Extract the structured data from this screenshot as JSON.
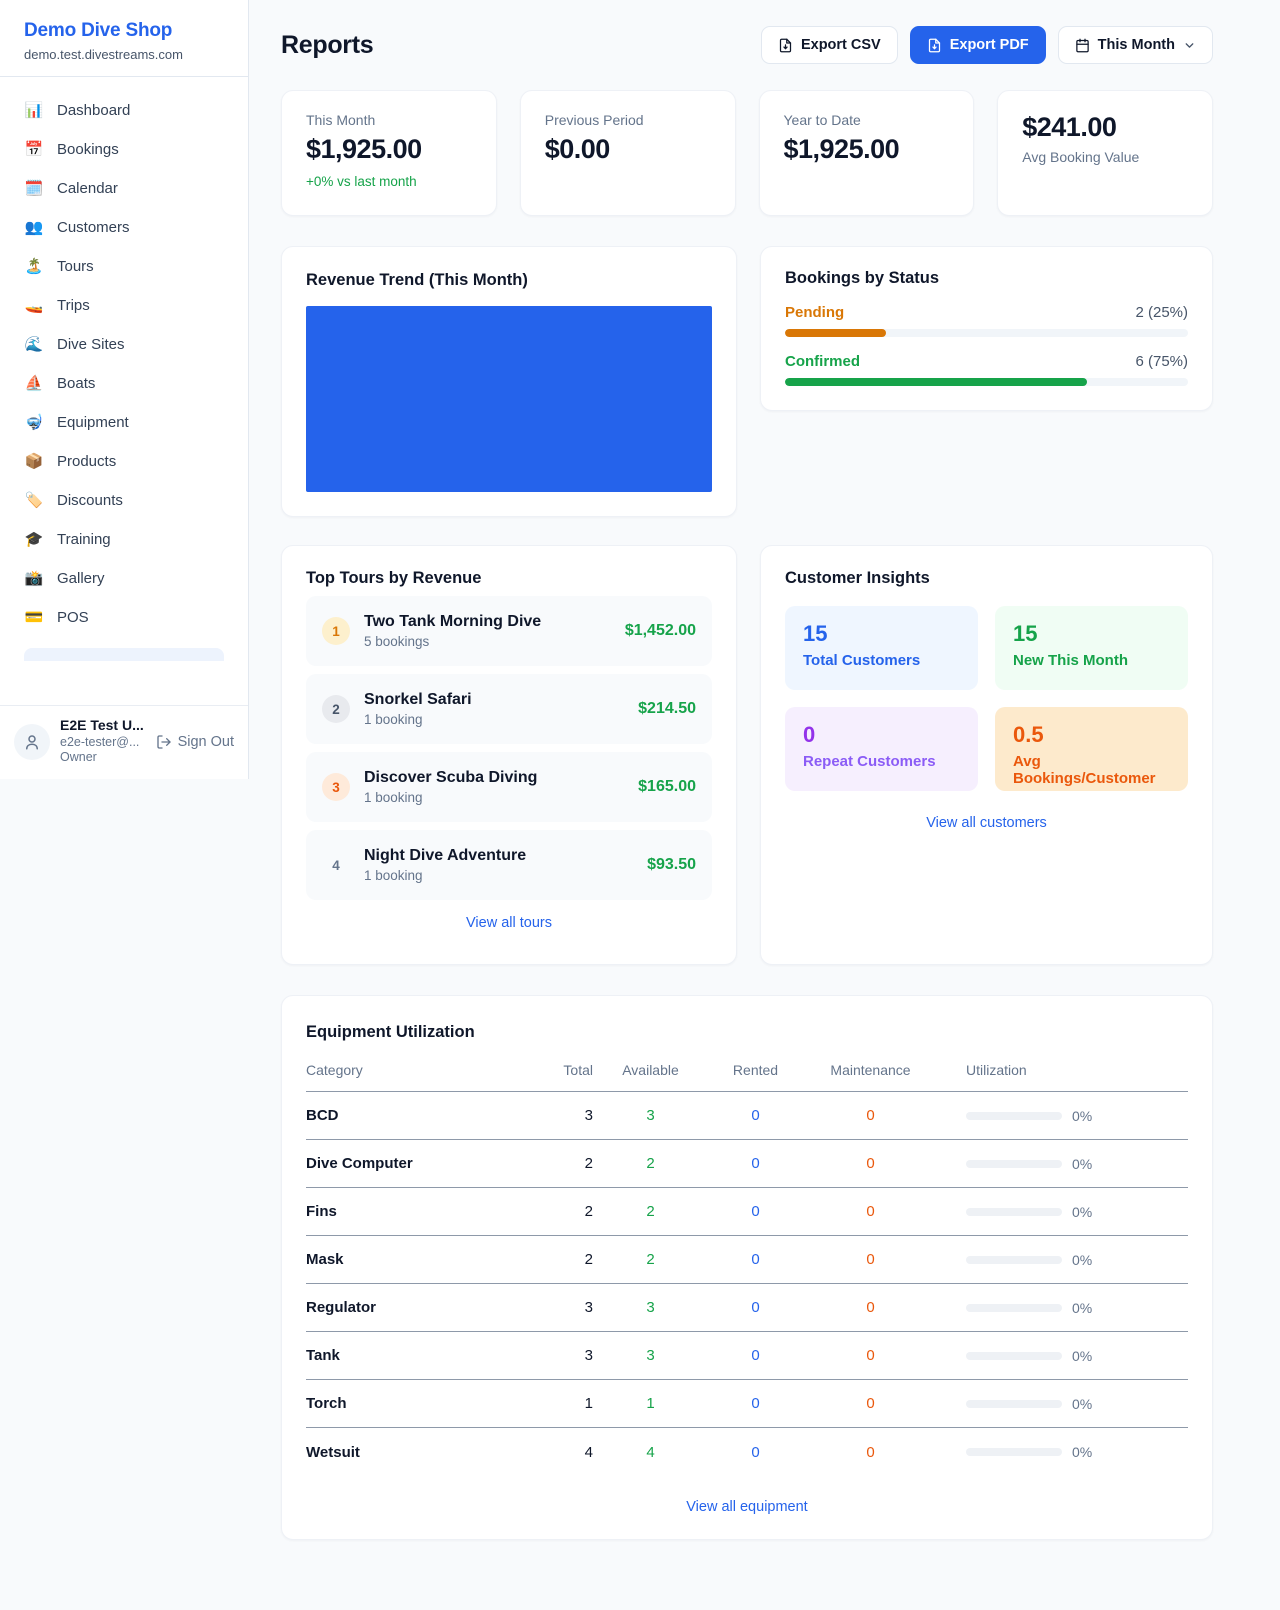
{
  "colors": {
    "accent_blue": "#2563eb",
    "green": "#16a34a",
    "pending_orange": "#d97706",
    "deep_orange": "#ea580c",
    "purple": "#9333ea"
  },
  "brand": {
    "name": "Demo Dive Shop",
    "domain": "demo.test.divestreams.com"
  },
  "sidebar": {
    "items": [
      {
        "icon": "📊",
        "label": "Dashboard"
      },
      {
        "icon": "📅",
        "label": "Bookings"
      },
      {
        "icon": "🗓️",
        "label": "Calendar"
      },
      {
        "icon": "👥",
        "label": "Customers"
      },
      {
        "icon": "🏝️",
        "label": "Tours"
      },
      {
        "icon": "🚤",
        "label": "Trips"
      },
      {
        "icon": "🌊",
        "label": "Dive Sites"
      },
      {
        "icon": "⛵",
        "label": "Boats"
      },
      {
        "icon": "🤿",
        "label": "Equipment"
      },
      {
        "icon": "📦",
        "label": "Products"
      },
      {
        "icon": "🏷️",
        "label": "Discounts"
      },
      {
        "icon": "🎓",
        "label": "Training"
      },
      {
        "icon": "📸",
        "label": "Gallery"
      },
      {
        "icon": "💳",
        "label": "POS"
      }
    ]
  },
  "user": {
    "name": "E2E Test U...",
    "email": "e2e-tester@...",
    "role": "Owner",
    "sign_out_label": "Sign Out"
  },
  "header": {
    "title": "Reports",
    "export_csv_label": "Export CSV",
    "export_pdf_label": "Export PDF",
    "period_label": "This Month"
  },
  "stats": [
    {
      "label": "This Month",
      "value": "$1,925.00",
      "delta": "+0% vs last month"
    },
    {
      "label": "Previous Period",
      "value": "$0.00"
    },
    {
      "label": "Year to Date",
      "value": "$1,925.00"
    },
    {
      "value": "$241.00",
      "label": "Avg Booking Value"
    }
  ],
  "revenue_trend": {
    "title": "Revenue Trend (This Month)"
  },
  "bookings_by_status": {
    "title": "Bookings by Status",
    "rows": [
      {
        "label": "Pending",
        "value": "2 (25%)",
        "percent": 25
      },
      {
        "label": "Confirmed",
        "value": "6 (75%)",
        "percent": 75
      }
    ]
  },
  "top_tours": {
    "title": "Top Tours by Revenue",
    "rows": [
      {
        "rank": "1",
        "name": "Two Tank Morning Dive",
        "bookings": "5 bookings",
        "amount": "$1,452.00"
      },
      {
        "rank": "2",
        "name": "Snorkel Safari",
        "bookings": "1 booking",
        "amount": "$214.50"
      },
      {
        "rank": "3",
        "name": "Discover Scuba Diving",
        "bookings": "1 booking",
        "amount": "$165.00"
      },
      {
        "rank": "4",
        "name": "Night Dive Adventure",
        "bookings": "1 booking",
        "amount": "$93.50"
      }
    ],
    "link": "View all tours"
  },
  "customer_insights": {
    "title": "Customer Insights",
    "tiles": [
      {
        "value": "15",
        "label": "Total Customers"
      },
      {
        "value": "15",
        "label": "New This Month"
      },
      {
        "value": "0",
        "label": "Repeat Customers"
      },
      {
        "value": "0.5",
        "label": "Avg Bookings/Customer"
      }
    ],
    "link": "View all customers"
  },
  "equipment": {
    "title": "Equipment Utilization",
    "columns": [
      "Category",
      "Total",
      "Available",
      "Rented",
      "Maintenance",
      "Utilization"
    ],
    "rows": [
      {
        "category": "BCD",
        "total": "3",
        "available": "3",
        "rented": "0",
        "maintenance": "0",
        "utilization": "0%"
      },
      {
        "category": "Dive Computer",
        "total": "2",
        "available": "2",
        "rented": "0",
        "maintenance": "0",
        "utilization": "0%"
      },
      {
        "category": "Fins",
        "total": "2",
        "available": "2",
        "rented": "0",
        "maintenance": "0",
        "utilization": "0%"
      },
      {
        "category": "Mask",
        "total": "2",
        "available": "2",
        "rented": "0",
        "maintenance": "0",
        "utilization": "0%"
      },
      {
        "category": "Regulator",
        "total": "3",
        "available": "3",
        "rented": "0",
        "maintenance": "0",
        "utilization": "0%"
      },
      {
        "category": "Tank",
        "total": "3",
        "available": "3",
        "rented": "0",
        "maintenance": "0",
        "utilization": "0%"
      },
      {
        "category": "Torch",
        "total": "1",
        "available": "1",
        "rented": "0",
        "maintenance": "0",
        "utilization": "0%"
      },
      {
        "category": "Wetsuit",
        "total": "4",
        "available": "4",
        "rented": "0",
        "maintenance": "0",
        "utilization": "0%"
      }
    ],
    "link": "View all equipment"
  },
  "chart_data": [
    {
      "type": "bar",
      "title": "Revenue Trend (This Month)",
      "categories": [
        "This Month"
      ],
      "values": [
        1925
      ],
      "xlabel": "",
      "ylabel": "",
      "note": "single solid blue bar fills entire plot area; no axes, gridlines or labels visible",
      "bar_color": "#2563eb"
    },
    {
      "type": "bar",
      "title": "Bookings by Status",
      "categories": [
        "Pending",
        "Confirmed"
      ],
      "values": [
        2,
        6
      ],
      "percentages": [
        25,
        75
      ],
      "value_labels": [
        "2 (25%)",
        "6 (75%)"
      ],
      "colors": [
        "#d97706",
        "#16a34a"
      ],
      "layout": "horizontal progress bars"
    }
  ]
}
